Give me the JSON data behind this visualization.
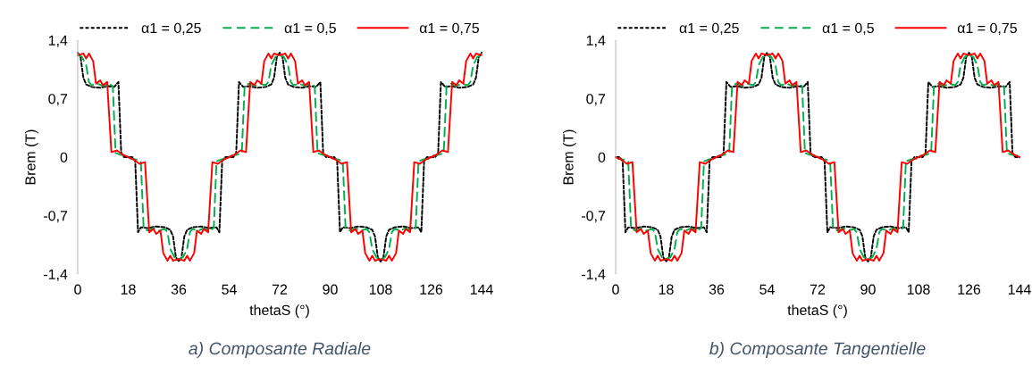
{
  "chart_data": [
    {
      "type": "line",
      "title": "a) Composante Radiale",
      "xlabel": "thetaS (°)",
      "ylabel": "Brem (T)",
      "xlim": [
        0,
        144
      ],
      "xticks": [
        0,
        18,
        36,
        54,
        72,
        90,
        108,
        126,
        144
      ],
      "ylim": [
        -1.4,
        1.4
      ],
      "yticks": [
        {
          "value": -1.4,
          "label": "-1,4"
        },
        {
          "value": -0.7,
          "label": "-0,7"
        },
        {
          "value": 0,
          "label": "0"
        },
        {
          "value": 0.7,
          "label": "0,7"
        },
        {
          "value": 1.4,
          "label": "1,4"
        }
      ],
      "grid": false,
      "legend": "top",
      "series": [
        {
          "name": "α1 = 0,25",
          "color": "#000000",
          "line_style": "dotted",
          "x": [
            0,
            1,
            2,
            3,
            5,
            8,
            11,
            13,
            14.5,
            15.5,
            16.5,
            18,
            19.5,
            20.5,
            21.5,
            22.5,
            25,
            28,
            31,
            33,
            34,
            35,
            36,
            37,
            38,
            39,
            41,
            44,
            47,
            49.5,
            50.5,
            51.5,
            52.5,
            54,
            55.5,
            56.5,
            57.5,
            59,
            61,
            64,
            67,
            69,
            70,
            71,
            72,
            73,
            74,
            75,
            77,
            80,
            83,
            85,
            86.5,
            87.5,
            88.5,
            90,
            91.5,
            92.5,
            93.5,
            94.5,
            97,
            100,
            103,
            105,
            106,
            107,
            108,
            109,
            110,
            111,
            113,
            116,
            119,
            121.5,
            122.5,
            123.5,
            124.5,
            126,
            127.5,
            128.5,
            129.5,
            131,
            133,
            136,
            139,
            141,
            142,
            143,
            144
          ],
          "values": [
            1.25,
            1.2,
            0.95,
            0.87,
            0.84,
            0.83,
            0.85,
            0.84,
            0.9,
            0.05,
            0,
            0,
            0,
            -0.05,
            -0.9,
            -0.84,
            -0.85,
            -0.83,
            -0.84,
            -0.87,
            -0.95,
            -1.2,
            -1.25,
            -1.2,
            -0.95,
            -0.87,
            -0.84,
            -0.83,
            -0.85,
            -0.84,
            -0.9,
            -0.05,
            0,
            0,
            0,
            0.05,
            0.9,
            0.84,
            0.85,
            0.83,
            0.84,
            0.87,
            0.95,
            1.2,
            1.25,
            1.2,
            0.95,
            0.87,
            0.84,
            0.83,
            0.85,
            0.84,
            0.9,
            0.05,
            0,
            0,
            0,
            -0.05,
            -0.9,
            -0.84,
            -0.85,
            -0.83,
            -0.84,
            -0.87,
            -0.95,
            -1.2,
            -1.25,
            -1.2,
            -0.95,
            -0.87,
            -0.84,
            -0.83,
            -0.85,
            -0.84,
            -0.9,
            -0.05,
            0,
            0,
            0,
            0.05,
            0.9,
            0.84,
            0.85,
            0.83,
            0.84,
            0.87,
            0.95,
            1.2,
            1.25
          ]
        },
        {
          "name": "α1 = 0,5",
          "color": "#00b050",
          "line_style": "dashed",
          "x": [
            0,
            1.5,
            3,
            4,
            5,
            7,
            9,
            11,
            12.5,
            13.5,
            15,
            17,
            19,
            21,
            22.5,
            23.5,
            25,
            27,
            29,
            31,
            32,
            33,
            34.5,
            36,
            37.5,
            39,
            40,
            41,
            43,
            45,
            47,
            48.5,
            49.5,
            51,
            53,
            55,
            57,
            58.5,
            59.5,
            61,
            63,
            65,
            67,
            68,
            69,
            70.5,
            72,
            73.5,
            75,
            76,
            77,
            79,
            81,
            83,
            84.5,
            85.5,
            87,
            89,
            91,
            93,
            94.5,
            95.5,
            97,
            99,
            101,
            103,
            104,
            105,
            106.5,
            108,
            109.5,
            111,
            112,
            113,
            115,
            117,
            119,
            120.5,
            121.5,
            123,
            125,
            127,
            129,
            130.5,
            131.5,
            133,
            135,
            137,
            139,
            140,
            141,
            142.5,
            144
          ],
          "values": [
            1.22,
            1.2,
            1.1,
            0.9,
            0.86,
            0.88,
            0.85,
            0.88,
            0.85,
            0.05,
            0.03,
            0.02,
            -0.02,
            -0.03,
            -0.05,
            -0.85,
            -0.88,
            -0.85,
            -0.88,
            -0.86,
            -0.9,
            -1.1,
            -1.2,
            -1.22,
            -1.2,
            -1.1,
            -0.9,
            -0.86,
            -0.88,
            -0.85,
            -0.88,
            -0.85,
            -0.05,
            -0.03,
            -0.02,
            0.02,
            0.03,
            0.05,
            0.85,
            0.88,
            0.85,
            0.88,
            0.86,
            0.9,
            1.1,
            1.2,
            1.22,
            1.2,
            1.1,
            0.9,
            0.86,
            0.88,
            0.85,
            0.88,
            0.85,
            0.05,
            0.03,
            0.02,
            -0.02,
            -0.03,
            -0.05,
            -0.85,
            -0.88,
            -0.85,
            -0.88,
            -0.86,
            -0.9,
            -1.1,
            -1.2,
            -1.22,
            -1.2,
            -1.1,
            -0.9,
            -0.86,
            -0.88,
            -0.85,
            -0.88,
            -0.85,
            -0.05,
            -0.03,
            -0.02,
            0.02,
            0.03,
            0.05,
            0.85,
            0.88,
            0.85,
            0.88,
            0.86,
            0.9,
            1.1,
            1.2,
            1.22
          ]
        },
        {
          "name": "α1 = 0,75",
          "color": "#ff0000",
          "line_style": "solid",
          "x": [
            0,
            2,
            3,
            4,
            5.5,
            6.5,
            8,
            9,
            10.5,
            12,
            14,
            16,
            18,
            20,
            22,
            24,
            25.5,
            27,
            28,
            29.5,
            30.5,
            32,
            33,
            34,
            36,
            38,
            39,
            40,
            41.5,
            42.5,
            44,
            45,
            46.5,
            48,
            50,
            52,
            54,
            56,
            58,
            60,
            61.5,
            63,
            64,
            65.5,
            66.5,
            68,
            69,
            70,
            72,
            74,
            75,
            76,
            77.5,
            78.5,
            80,
            81,
            82.5,
            84,
            86,
            88,
            90,
            92,
            94,
            96,
            97.5,
            99,
            100,
            101.5,
            102.5,
            104,
            105,
            106,
            108,
            110,
            111,
            112,
            113.5,
            114.5,
            116,
            117,
            118.5,
            120,
            122,
            124,
            126,
            128,
            130,
            132,
            133.5,
            135,
            136,
            137.5,
            138.5,
            140,
            141,
            142,
            144
          ],
          "values": [
            1.22,
            1.24,
            1.18,
            1.24,
            1.15,
            0.88,
            0.92,
            0.86,
            0.9,
            0.06,
            0.08,
            0.03,
            0,
            -0.03,
            -0.08,
            -0.06,
            -0.9,
            -0.86,
            -0.92,
            -0.88,
            -1.15,
            -1.24,
            -1.18,
            -1.24,
            -1.22,
            -1.24,
            -1.18,
            -1.24,
            -1.15,
            -0.88,
            -0.92,
            -0.86,
            -0.9,
            -0.06,
            -0.08,
            -0.03,
            0,
            0.03,
            0.08,
            0.06,
            0.9,
            0.86,
            0.92,
            0.88,
            1.15,
            1.24,
            1.18,
            1.24,
            1.22,
            1.24,
            1.18,
            1.24,
            1.15,
            0.88,
            0.92,
            0.86,
            0.9,
            0.06,
            0.08,
            0.03,
            0,
            -0.03,
            -0.08,
            -0.06,
            -0.9,
            -0.86,
            -0.92,
            -0.88,
            -1.15,
            -1.24,
            -1.18,
            -1.24,
            -1.22,
            -1.24,
            -1.18,
            -1.24,
            -1.15,
            -0.88,
            -0.92,
            -0.86,
            -0.9,
            -0.06,
            -0.08,
            -0.03,
            0,
            0.03,
            0.08,
            0.06,
            0.9,
            0.86,
            0.92,
            0.88,
            1.15,
            1.24,
            1.18,
            1.24,
            1.22
          ]
        }
      ]
    },
    {
      "type": "line",
      "title": "b) Composante Tangentielle",
      "xlabel": "thetaS (°)",
      "ylabel": "Brem (T)",
      "xlim": [
        0,
        144
      ],
      "xticks": [
        0,
        18,
        36,
        54,
        72,
        90,
        108,
        126,
        144
      ],
      "ylim": [
        -1.4,
        1.4
      ],
      "yticks": [
        {
          "value": -1.4,
          "label": "-1,4"
        },
        {
          "value": -0.7,
          "label": "-0,7"
        },
        {
          "value": 0,
          "label": "0"
        },
        {
          "value": 0.7,
          "label": "0,7"
        },
        {
          "value": 1.4,
          "label": "1,4"
        }
      ],
      "grid": false,
      "legend": "top",
      "series": [
        {
          "name": "α1 = 0,25",
          "color": "#000000",
          "line_style": "dotted",
          "x": [
            0,
            1.5,
            2.5,
            3.5,
            4.5,
            7,
            10,
            13,
            15,
            16,
            17,
            18,
            19,
            20,
            21,
            23,
            26,
            29,
            31.5,
            32.5,
            33.5,
            34.5,
            36,
            37.5,
            38.5,
            39.5,
            41,
            43,
            46,
            49,
            51,
            52,
            53,
            54,
            55,
            56,
            57,
            59,
            62,
            65,
            67,
            68.5,
            69.5,
            70.5,
            72,
            73.5,
            74.5,
            75.5,
            76.5,
            79,
            82,
            85,
            87,
            88,
            89,
            90,
            91,
            92,
            93,
            95,
            98,
            101,
            103.5,
            104.5,
            105.5,
            106.5,
            108,
            109.5,
            110.5,
            111.5,
            113,
            115,
            118,
            121,
            123,
            124,
            125,
            126,
            127,
            128,
            129,
            131,
            134,
            137,
            139,
            140.5,
            141.5,
            142.5,
            144
          ],
          "values": [
            0,
            0,
            -0.05,
            -0.9,
            -0.84,
            -0.85,
            -0.83,
            -0.84,
            -0.87,
            -0.95,
            -1.2,
            -1.25,
            -1.2,
            -0.95,
            -0.87,
            -0.84,
            -0.83,
            -0.85,
            -0.84,
            -0.9,
            -0.05,
            0,
            0,
            0,
            0.05,
            0.9,
            0.84,
            0.85,
            0.83,
            0.84,
            0.87,
            0.95,
            1.2,
            1.25,
            1.2,
            0.95,
            0.87,
            0.84,
            0.83,
            0.85,
            0.84,
            0.9,
            0.05,
            0,
            0,
            0,
            -0.05,
            -0.9,
            -0.84,
            -0.85,
            -0.83,
            -0.84,
            -0.87,
            -0.95,
            -1.2,
            -1.25,
            -1.2,
            -0.95,
            -0.87,
            -0.84,
            -0.83,
            -0.85,
            -0.84,
            -0.9,
            -0.05,
            0,
            0,
            0,
            0.05,
            0.9,
            0.84,
            0.85,
            0.83,
            0.84,
            0.87,
            0.95,
            1.2,
            1.25,
            1.2,
            0.95,
            0.87,
            0.84,
            0.83,
            0.85,
            0.84,
            0.9,
            0.05,
            0,
            0
          ]
        },
        {
          "name": "α1 = 0,5",
          "color": "#00b050",
          "line_style": "dashed",
          "x": [
            0,
            1,
            3,
            4.5,
            5.5,
            7,
            9,
            11,
            13,
            14,
            15,
            16.5,
            18,
            19.5,
            21,
            22,
            23,
            25,
            27,
            29,
            30.5,
            31.5,
            33,
            35,
            37,
            39,
            40.5,
            41.5,
            43,
            45,
            47,
            49,
            50,
            51,
            52.5,
            54,
            55.5,
            57,
            58,
            59,
            61,
            63,
            65,
            66.5,
            67.5,
            69,
            71,
            72,
            73,
            75,
            76.5,
            77.5,
            79,
            81,
            83,
            85,
            86,
            87,
            88.5,
            90,
            91.5,
            93,
            94,
            95,
            97,
            99,
            101,
            102.5,
            103.5,
            105,
            107,
            109,
            111,
            112.5,
            113.5,
            115,
            117,
            119,
            121,
            122,
            123,
            124.5,
            126,
            127.5,
            129,
            130,
            131,
            133,
            135,
            137,
            138.5,
            139.5,
            141,
            143,
            144
          ],
          "values": [
            0,
            -0.02,
            -0.03,
            -0.05,
            -0.85,
            -0.88,
            -0.85,
            -0.88,
            -0.86,
            -0.9,
            -1.1,
            -1.2,
            -1.22,
            -1.2,
            -1.1,
            -0.9,
            -0.86,
            -0.88,
            -0.85,
            -0.88,
            -0.85,
            -0.05,
            -0.03,
            -0.02,
            0.02,
            0.03,
            0.05,
            0.85,
            0.88,
            0.85,
            0.88,
            0.86,
            0.9,
            1.1,
            1.2,
            1.22,
            1.2,
            1.1,
            0.9,
            0.86,
            0.88,
            0.85,
            0.88,
            0.85,
            0.05,
            0.03,
            0.02,
            0,
            -0.02,
            -0.03,
            -0.05,
            -0.85,
            -0.88,
            -0.85,
            -0.88,
            -0.86,
            -0.9,
            -1.1,
            -1.2,
            -1.22,
            -1.2,
            -1.1,
            -0.9,
            -0.86,
            -0.88,
            -0.85,
            -0.88,
            -0.85,
            -0.05,
            -0.03,
            -0.02,
            0.02,
            0.03,
            0.05,
            0.85,
            0.88,
            0.85,
            0.88,
            0.86,
            0.9,
            1.1,
            1.2,
            1.22,
            1.2,
            1.1,
            0.9,
            0.86,
            0.88,
            0.85,
            0.88,
            0.85,
            0.05,
            0.03,
            0.02,
            0
          ]
        },
        {
          "name": "α1 = 0,75",
          "color": "#ff0000",
          "line_style": "solid",
          "x": [
            0,
            2,
            4,
            6,
            7.5,
            9,
            10,
            11.5,
            12.5,
            14,
            15,
            16,
            18,
            20,
            21,
            22,
            23.5,
            24.5,
            26,
            27,
            28.5,
            30,
            32,
            34,
            36,
            38,
            40,
            42,
            43.5,
            45,
            46,
            47.5,
            48.5,
            50,
            51,
            52,
            54,
            56,
            57,
            58,
            59.5,
            60.5,
            62,
            63,
            64.5,
            66,
            68,
            70,
            72,
            74,
            76,
            78,
            79.5,
            81,
            82,
            83.5,
            84.5,
            86,
            87,
            88,
            90,
            92,
            93,
            94,
            95.5,
            96.5,
            98,
            99,
            100.5,
            102,
            104,
            106,
            108,
            110,
            112,
            114,
            115.5,
            117,
            118,
            119.5,
            120.5,
            122,
            123,
            124,
            126,
            128,
            129,
            130,
            131.5,
            132.5,
            134,
            135,
            136.5,
            138,
            140,
            142,
            144
          ],
          "values": [
            0,
            -0.03,
            -0.08,
            -0.06,
            -0.9,
            -0.86,
            -0.92,
            -0.88,
            -1.15,
            -1.24,
            -1.18,
            -1.24,
            -1.22,
            -1.24,
            -1.18,
            -1.24,
            -1.15,
            -0.88,
            -0.92,
            -0.86,
            -0.9,
            -0.06,
            -0.08,
            -0.03,
            0,
            0.03,
            0.08,
            0.06,
            0.9,
            0.86,
            0.92,
            0.88,
            1.15,
            1.24,
            1.18,
            1.24,
            1.22,
            1.24,
            1.18,
            1.24,
            1.15,
            0.88,
            0.92,
            0.86,
            0.9,
            0.06,
            0.08,
            0.03,
            0,
            -0.03,
            -0.08,
            -0.06,
            -0.9,
            -0.86,
            -0.92,
            -0.88,
            -1.15,
            -1.24,
            -1.18,
            -1.24,
            -1.22,
            -1.24,
            -1.18,
            -1.24,
            -1.15,
            -0.88,
            -0.92,
            -0.86,
            -0.9,
            -0.06,
            -0.08,
            -0.03,
            0,
            0.03,
            0.08,
            0.06,
            0.9,
            0.86,
            0.92,
            0.88,
            1.15,
            1.24,
            1.18,
            1.24,
            1.22,
            1.24,
            1.18,
            1.24,
            1.15,
            0.88,
            0.92,
            0.86,
            0.9,
            0.06,
            0.08,
            0.03,
            0
          ]
        }
      ]
    }
  ]
}
